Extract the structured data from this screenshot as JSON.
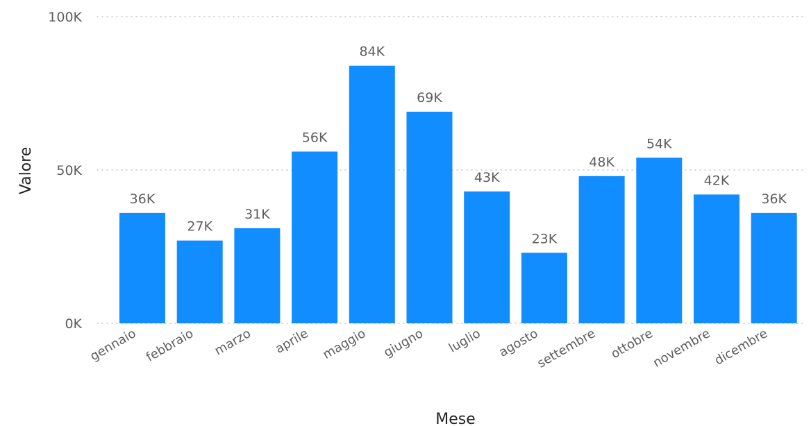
{
  "chart_data": {
    "type": "bar",
    "categories": [
      "gennaio",
      "febbraio",
      "marzo",
      "aprile",
      "maggio",
      "giugno",
      "luglio",
      "agosto",
      "settembre",
      "ottobre",
      "novembre",
      "dicembre"
    ],
    "values": [
      36,
      27,
      31,
      56,
      84,
      69,
      43,
      23,
      48,
      54,
      42,
      36
    ],
    "data_labels": [
      "36K",
      "27K",
      "31K",
      "56K",
      "84K",
      "69K",
      "43K",
      "23K",
      "48K",
      "54K",
      "42K",
      "36K"
    ],
    "value_unit": "thousands",
    "xlabel": "Mese",
    "ylabel": "Valore",
    "ylim": [
      0,
      100
    ],
    "yticks": [
      0,
      50,
      100
    ],
    "ytick_labels": [
      "0K",
      "50K",
      "100K"
    ],
    "grid": true,
    "bar_color": "#118dff"
  }
}
